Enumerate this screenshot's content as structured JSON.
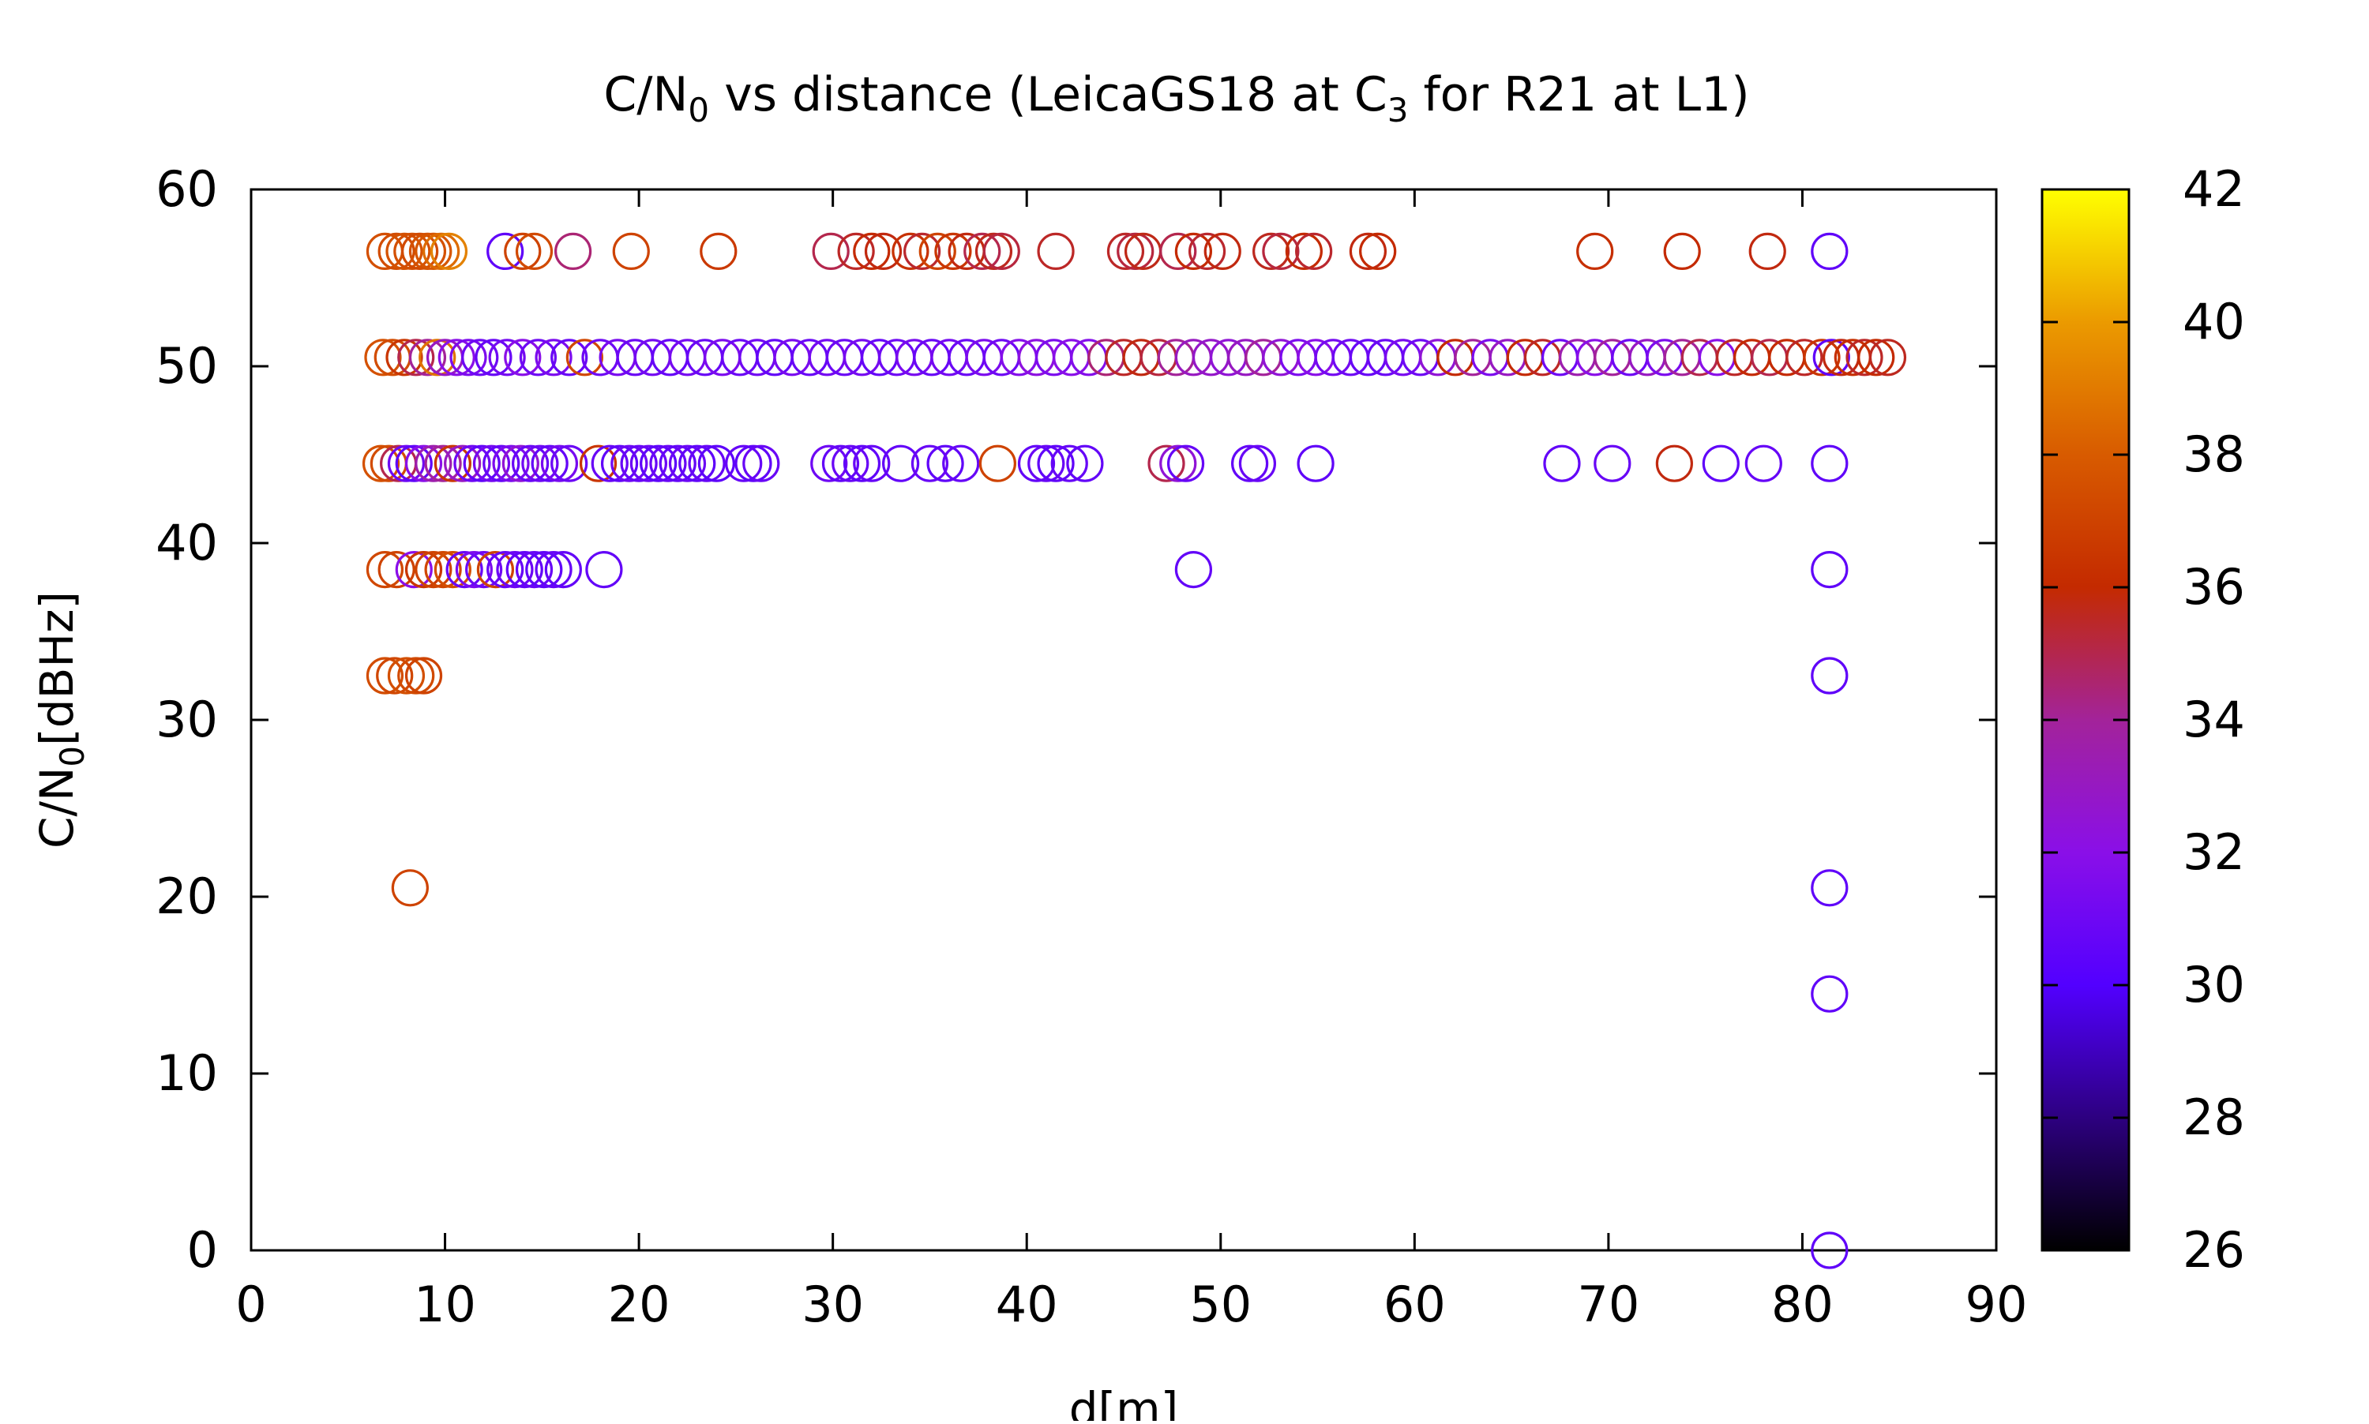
{
  "chart_data": {
    "type": "scatter",
    "title": "C/N",
    "title_sub": "0",
    "title_mid": " vs distance (LeicaGS18 at C",
    "title_sub2": "3",
    "title_tail": " for R21 at L1)",
    "xlabel": "d[m]",
    "ylabel": "C/N",
    "ylabel_sub": "0",
    "ylabel_tail": "[dBHz]",
    "xlim": [
      0,
      90
    ],
    "ylim": [
      0,
      60
    ],
    "x_ticks": [
      0,
      10,
      20,
      30,
      40,
      50,
      60,
      70,
      80,
      90
    ],
    "y_ticks": [
      0,
      10,
      20,
      30,
      40,
      50,
      60
    ],
    "colorbar": {
      "range": [
        26,
        42
      ],
      "ticks": [
        26,
        28,
        30,
        32,
        34,
        36,
        38,
        40,
        42
      ],
      "palette": "gnuplot-pm3d"
    },
    "marker": "open-circle",
    "grid": false,
    "series": [
      {
        "points": [
          [
            6.9,
            56.5,
            37.5
          ],
          [
            7.5,
            56.5,
            37.4
          ],
          [
            7.9,
            56.5,
            37.6
          ],
          [
            8.3,
            56.5,
            37.5
          ],
          [
            8.7,
            56.5,
            37.3
          ],
          [
            9.1,
            56.5,
            37.6
          ],
          [
            9.4,
            56.5,
            37.8
          ],
          [
            9.8,
            56.5,
            38.5
          ],
          [
            10.2,
            56.5,
            39.2
          ],
          [
            13.1,
            56.5,
            30.5
          ],
          [
            14.0,
            56.5,
            37.0
          ],
          [
            14.6,
            56.5,
            37.3
          ],
          [
            16.6,
            56.5,
            34.5
          ],
          [
            19.6,
            56.5,
            37.0
          ],
          [
            24.1,
            56.5,
            36.6
          ],
          [
            29.9,
            56.5,
            35.0
          ],
          [
            31.2,
            56.5,
            35.5
          ],
          [
            32.0,
            56.5,
            36.0
          ],
          [
            32.6,
            56.5,
            35.8
          ],
          [
            34.0,
            56.5,
            36.3
          ],
          [
            34.6,
            56.5,
            35.4
          ],
          [
            35.4,
            56.5,
            37.0
          ],
          [
            36.2,
            56.5,
            36.5
          ],
          [
            36.9,
            56.5,
            35.8
          ],
          [
            37.7,
            56.5,
            35.0
          ],
          [
            38.3,
            56.5,
            35.6
          ],
          [
            38.7,
            56.5,
            35.2
          ],
          [
            41.5,
            56.5,
            35.5
          ],
          [
            45.1,
            56.5,
            35.5
          ],
          [
            45.6,
            56.5,
            35.2
          ],
          [
            46.0,
            56.5,
            35.7
          ],
          [
            47.8,
            56.5,
            35.0
          ],
          [
            48.6,
            56.5,
            36.0
          ],
          [
            49.3,
            56.5,
            35.4
          ],
          [
            50.1,
            56.5,
            35.8
          ],
          [
            52.6,
            56.5,
            35.6
          ],
          [
            53.1,
            56.5,
            35.2
          ],
          [
            54.3,
            56.5,
            36.0
          ],
          [
            54.8,
            56.5,
            35.4
          ],
          [
            57.6,
            56.5,
            35.8
          ],
          [
            58.1,
            56.5,
            36.0
          ],
          [
            69.3,
            56.5,
            36.2
          ],
          [
            73.8,
            56.5,
            36.0
          ],
          [
            78.2,
            56.5,
            35.8
          ],
          [
            81.4,
            56.5,
            30.5
          ],
          [
            6.8,
            50.5,
            37.6
          ],
          [
            7.3,
            50.5,
            37.4
          ],
          [
            7.9,
            50.5,
            36.5
          ],
          [
            8.5,
            50.5,
            35.0
          ],
          [
            9.1,
            50.5,
            34.0
          ],
          [
            9.6,
            50.5,
            38.8
          ],
          [
            10.0,
            50.5,
            33.0
          ],
          [
            10.6,
            50.5,
            32.0
          ],
          [
            11.2,
            50.5,
            31.5
          ],
          [
            11.8,
            50.5,
            31.0
          ],
          [
            12.5,
            50.5,
            30.8
          ],
          [
            13.2,
            50.5,
            31.2
          ],
          [
            14.0,
            50.5,
            32.0
          ],
          [
            14.8,
            50.5,
            31.0
          ],
          [
            15.6,
            50.5,
            31.5
          ],
          [
            16.4,
            50.5,
            30.8
          ],
          [
            17.2,
            50.5,
            37.2
          ],
          [
            18.0,
            50.5,
            31.0
          ],
          [
            18.9,
            50.5,
            31.4
          ],
          [
            19.8,
            50.5,
            30.9
          ],
          [
            20.7,
            50.5,
            31.2
          ],
          [
            21.6,
            50.5,
            30.7
          ],
          [
            22.5,
            50.5,
            31.3
          ],
          [
            23.4,
            50.5,
            30.8
          ],
          [
            24.3,
            50.5,
            31.5
          ],
          [
            25.2,
            50.5,
            30.9
          ],
          [
            26.1,
            50.5,
            31.1
          ],
          [
            27.0,
            50.5,
            30.6
          ],
          [
            27.9,
            50.5,
            31.4
          ],
          [
            28.8,
            50.5,
            30.8
          ],
          [
            29.7,
            50.5,
            31.2
          ],
          [
            30.6,
            50.5,
            30.9
          ],
          [
            31.5,
            50.5,
            31.3
          ],
          [
            32.4,
            50.5,
            30.7
          ],
          [
            33.3,
            50.5,
            31.0
          ],
          [
            34.2,
            50.5,
            31.4
          ],
          [
            35.1,
            50.5,
            30.8
          ],
          [
            36.0,
            50.5,
            31.2
          ],
          [
            36.9,
            50.5,
            30.9
          ],
          [
            37.8,
            50.5,
            31.5
          ],
          [
            38.7,
            50.5,
            31.0
          ],
          [
            39.6,
            50.5,
            31.8
          ],
          [
            40.5,
            50.5,
            32.2
          ],
          [
            41.4,
            50.5,
            31.5
          ],
          [
            42.3,
            50.5,
            32.0
          ],
          [
            43.2,
            50.5,
            31.8
          ],
          [
            44.1,
            50.5,
            34.5
          ],
          [
            45.0,
            50.5,
            35.5
          ],
          [
            45.9,
            50.5,
            35.8
          ],
          [
            46.8,
            50.5,
            35.2
          ],
          [
            47.7,
            50.5,
            34.0
          ],
          [
            48.6,
            50.5,
            33.0
          ],
          [
            49.5,
            50.5,
            32.8
          ],
          [
            50.4,
            50.5,
            32.5
          ],
          [
            51.3,
            50.5,
            33.0
          ],
          [
            52.2,
            50.5,
            34.0
          ],
          [
            53.1,
            50.5,
            32.5
          ],
          [
            54.0,
            50.5,
            31.5
          ],
          [
            54.9,
            50.5,
            32.0
          ],
          [
            55.8,
            50.5,
            31.2
          ],
          [
            56.7,
            50.5,
            31.0
          ],
          [
            57.6,
            50.5,
            30.8
          ],
          [
            58.5,
            50.5,
            30.9
          ],
          [
            59.4,
            50.5,
            31.4
          ],
          [
            60.3,
            50.5,
            31.0
          ],
          [
            61.2,
            50.5,
            32.5
          ],
          [
            62.1,
            50.5,
            36.0
          ],
          [
            63.0,
            50.5,
            34.0
          ],
          [
            63.9,
            50.5,
            31.5
          ],
          [
            64.8,
            50.5,
            33.0
          ],
          [
            65.7,
            50.5,
            36.0
          ],
          [
            66.6,
            50.5,
            35.5
          ],
          [
            67.5,
            50.5,
            31.0
          ],
          [
            68.4,
            50.5,
            33.5
          ],
          [
            69.3,
            50.5,
            32.0
          ],
          [
            70.2,
            50.5,
            34.0
          ],
          [
            71.1,
            50.5,
            31.0
          ],
          [
            72.0,
            50.5,
            33.0
          ],
          [
            72.9,
            50.5,
            31.5
          ],
          [
            73.8,
            50.5,
            34.0
          ],
          [
            74.7,
            50.5,
            35.0
          ],
          [
            75.6,
            50.5,
            32.0
          ],
          [
            76.5,
            50.5,
            35.5
          ],
          [
            77.4,
            50.5,
            36.0
          ],
          [
            78.3,
            50.5,
            35.0
          ],
          [
            79.2,
            50.5,
            36.0
          ],
          [
            80.1,
            50.5,
            35.5
          ],
          [
            81.0,
            50.5,
            36.5
          ],
          [
            81.5,
            50.5,
            30.5
          ],
          [
            82.0,
            50.5,
            35.8
          ],
          [
            82.6,
            50.5,
            36.2
          ],
          [
            83.2,
            50.5,
            35.5
          ],
          [
            83.8,
            50.5,
            36.0
          ],
          [
            84.4,
            50.5,
            35.6
          ],
          [
            6.7,
            44.5,
            37.6
          ],
          [
            7.1,
            44.5,
            37.4
          ],
          [
            7.6,
            44.5,
            35.0
          ],
          [
            8.0,
            44.5,
            31.0
          ],
          [
            8.4,
            44.5,
            30.5
          ],
          [
            8.9,
            44.5,
            32.0
          ],
          [
            9.4,
            44.5,
            33.5
          ],
          [
            9.9,
            44.5,
            34.0
          ],
          [
            10.4,
            44.5,
            36.5
          ],
          [
            10.9,
            44.5,
            33.0
          ],
          [
            11.4,
            44.5,
            31.0
          ],
          [
            11.9,
            44.5,
            30.5
          ],
          [
            12.4,
            44.5,
            31.2
          ],
          [
            12.9,
            44.5,
            30.7
          ],
          [
            13.4,
            44.5,
            31.5
          ],
          [
            13.9,
            44.5,
            32.5
          ],
          [
            14.4,
            44.5,
            30.8
          ],
          [
            14.9,
            44.5,
            31.0
          ],
          [
            15.4,
            44.5,
            30.6
          ],
          [
            15.9,
            44.5,
            31.3
          ],
          [
            16.4,
            44.5,
            30.9
          ],
          [
            17.9,
            44.5,
            36.5
          ],
          [
            18.5,
            44.5,
            30.8
          ],
          [
            19.0,
            44.5,
            30.5
          ],
          [
            19.5,
            44.5,
            31.0
          ],
          [
            20.0,
            44.5,
            30.7
          ],
          [
            20.5,
            44.5,
            30.9
          ],
          [
            21.0,
            44.5,
            30.4
          ],
          [
            21.5,
            44.5,
            30.8
          ],
          [
            22.0,
            44.5,
            30.6
          ],
          [
            22.5,
            44.5,
            30.9
          ],
          [
            23.0,
            44.5,
            30.5
          ],
          [
            23.5,
            44.5,
            30.7
          ],
          [
            24.0,
            44.5,
            30.4
          ],
          [
            25.4,
            44.5,
            30.7
          ],
          [
            25.9,
            44.5,
            30.5
          ],
          [
            26.3,
            44.5,
            30.8
          ],
          [
            29.8,
            44.5,
            31.0
          ],
          [
            30.4,
            44.5,
            30.6
          ],
          [
            30.9,
            44.5,
            30.8
          ],
          [
            31.5,
            44.5,
            30.5
          ],
          [
            32.0,
            44.5,
            30.7
          ],
          [
            33.5,
            44.5,
            30.6
          ],
          [
            35.0,
            44.5,
            30.8
          ],
          [
            35.8,
            44.5,
            30.5
          ],
          [
            36.6,
            44.5,
            30.7
          ],
          [
            38.5,
            44.5,
            37.0
          ],
          [
            40.5,
            44.5,
            30.6
          ],
          [
            41.0,
            44.5,
            30.8
          ],
          [
            41.5,
            44.5,
            30.5
          ],
          [
            42.2,
            44.5,
            30.7
          ],
          [
            43.0,
            44.5,
            30.6
          ],
          [
            47.2,
            44.5,
            35.0
          ],
          [
            47.8,
            44.5,
            32.5
          ],
          [
            48.2,
            44.5,
            30.7
          ],
          [
            51.5,
            44.5,
            30.6
          ],
          [
            51.9,
            44.5,
            30.8
          ],
          [
            54.9,
            44.5,
            30.5
          ],
          [
            67.6,
            44.5,
            30.6
          ],
          [
            70.2,
            44.5,
            30.8
          ],
          [
            73.4,
            44.5,
            35.8
          ],
          [
            75.8,
            44.5,
            30.5
          ],
          [
            78.0,
            44.5,
            30.7
          ],
          [
            81.4,
            44.5,
            30.5
          ],
          [
            6.9,
            38.5,
            37.2
          ],
          [
            7.5,
            38.5,
            37.0
          ],
          [
            8.4,
            38.5,
            32.0
          ],
          [
            8.9,
            38.5,
            36.5
          ],
          [
            9.4,
            38.5,
            37.0
          ],
          [
            9.9,
            38.5,
            37.2
          ],
          [
            10.4,
            38.5,
            37.5
          ],
          [
            11.0,
            38.5,
            30.8
          ],
          [
            11.5,
            38.5,
            31.5
          ],
          [
            12.0,
            38.5,
            31.0
          ],
          [
            12.6,
            38.5,
            37.0
          ],
          [
            13.1,
            38.5,
            30.7
          ],
          [
            13.6,
            38.5,
            30.9
          ],
          [
            14.1,
            38.5,
            30.6
          ],
          [
            14.6,
            38.5,
            30.8
          ],
          [
            15.1,
            38.5,
            30.5
          ],
          [
            15.6,
            38.5,
            30.7
          ],
          [
            16.1,
            38.5,
            30.6
          ],
          [
            18.2,
            38.5,
            30.6
          ],
          [
            48.6,
            38.5,
            30.6
          ],
          [
            81.4,
            38.5,
            30.5
          ],
          [
            6.9,
            32.5,
            37.4
          ],
          [
            7.4,
            32.5,
            37.2
          ],
          [
            8.0,
            32.5,
            37.5
          ],
          [
            8.5,
            32.5,
            37.3
          ],
          [
            8.9,
            32.5,
            37.0
          ],
          [
            81.4,
            32.5,
            30.5
          ],
          [
            8.2,
            20.5,
            37.0
          ],
          [
            81.4,
            20.5,
            30.5
          ],
          [
            81.4,
            14.5,
            30.5
          ],
          [
            81.4,
            0.0,
            30.5
          ]
        ]
      }
    ]
  }
}
